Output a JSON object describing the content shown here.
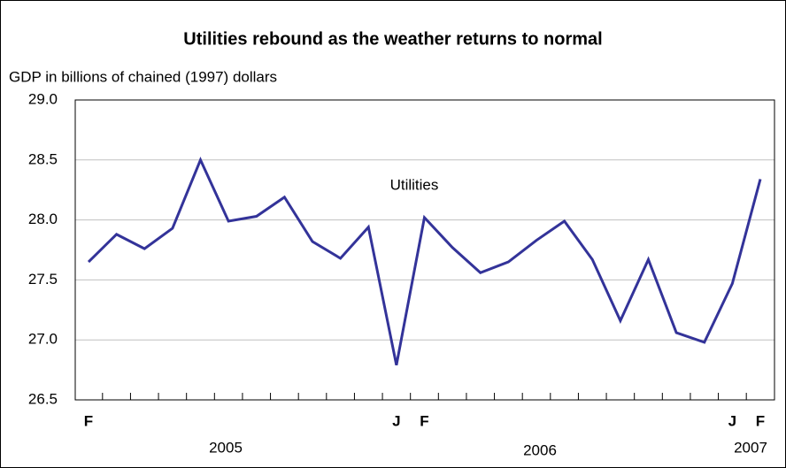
{
  "chart_data": {
    "type": "line",
    "title": "Utilities rebound as the weather returns to normal",
    "y_label": "GDP in billions of chained (1997) dollars",
    "categories": [
      "F",
      null,
      null,
      null,
      null,
      null,
      null,
      null,
      null,
      null,
      null,
      "J",
      "F",
      null,
      null,
      null,
      null,
      null,
      null,
      null,
      null,
      null,
      null,
      "J",
      "F"
    ],
    "year_labels": [
      "2005",
      "2006",
      "2007"
    ],
    "series": [
      {
        "name": "Utilities",
        "color": "#333399",
        "values": [
          27.65,
          27.88,
          27.76,
          27.93,
          28.5,
          27.99,
          28.03,
          28.19,
          27.82,
          27.68,
          27.94,
          26.79,
          28.02,
          27.77,
          27.56,
          27.65,
          27.83,
          27.99,
          27.67,
          27.16,
          27.67,
          27.06,
          26.98,
          27.47,
          28.34
        ]
      }
    ],
    "ylim": [
      26.5,
      29.0
    ],
    "yticks": [
      {
        "value": 26.5,
        "label": "26.5"
      },
      {
        "value": 27.0,
        "label": "27.0"
      },
      {
        "value": 27.5,
        "label": "27.5"
      },
      {
        "value": 28.0,
        "label": "28.0"
      },
      {
        "value": 28.5,
        "label": "28.5"
      },
      {
        "value": 29.0,
        "label": "29.0"
      }
    ],
    "grid": true
  }
}
